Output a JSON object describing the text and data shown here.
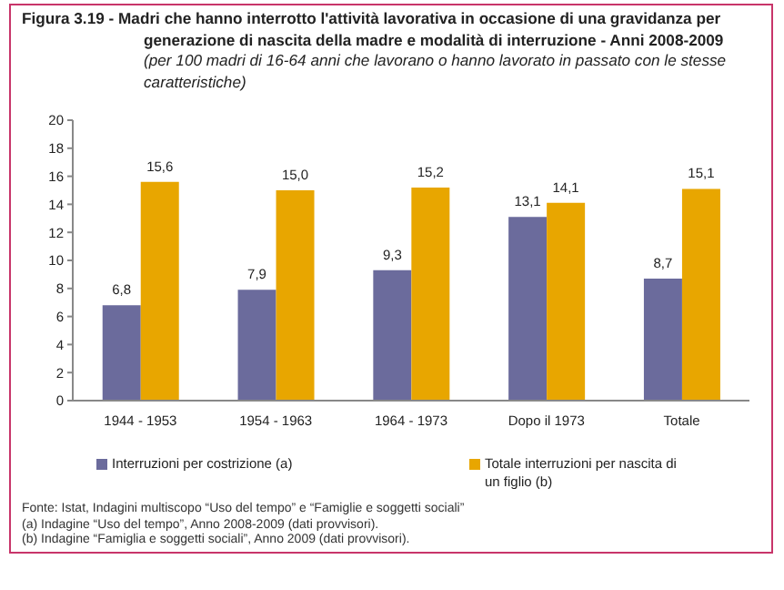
{
  "chart_data": {
    "type": "bar",
    "title": "Figura 3.19 - Madri che hanno interrotto l'attività lavorativa in occasione di una gravidanza per generazione di nascita della madre e modalità di interruzione - Anni 2008-2009",
    "subtitle": "(per 100 madri di 16-64 anni che lavorano o hanno lavorato in passato con le stesse caratteristiche)",
    "categories": [
      "1944 - 1953",
      "1954 - 1963",
      "1964 - 1973",
      "Dopo il 1973",
      "Totale"
    ],
    "series": [
      {
        "name": "Interruzioni per costrizione (a)",
        "color": "#6b6b9c",
        "values": [
          6.8,
          7.9,
          9.3,
          13.1,
          8.7
        ],
        "value_labels": [
          "6,8",
          "7,9",
          "9,3",
          "13,1",
          "8,7"
        ]
      },
      {
        "name": "Totale interruzioni per nascita di un figlio (b)",
        "color": "#e8a600",
        "values": [
          15.6,
          15.0,
          15.2,
          14.1,
          15.1
        ],
        "value_labels": [
          "15,6",
          "15,0",
          "15,2",
          "14,1",
          "15,1"
        ]
      }
    ],
    "ylim": [
      0,
      20
    ],
    "yticks": [
      0,
      2,
      4,
      6,
      8,
      10,
      12,
      14,
      16,
      18,
      20
    ],
    "grid": false,
    "legend": "bottom",
    "annotations": [
      "Fonte: Istat, Indagini multiscopo “Uso del tempo” e “Famiglie e soggetti sociali”",
      "(a) Indagine “Uso del tempo”, Anno 2008-2009 (dati provvisori).",
      "(b) Indagine “Famiglia e soggetti sociali”, Anno 2009 (dati provvisori)."
    ]
  }
}
